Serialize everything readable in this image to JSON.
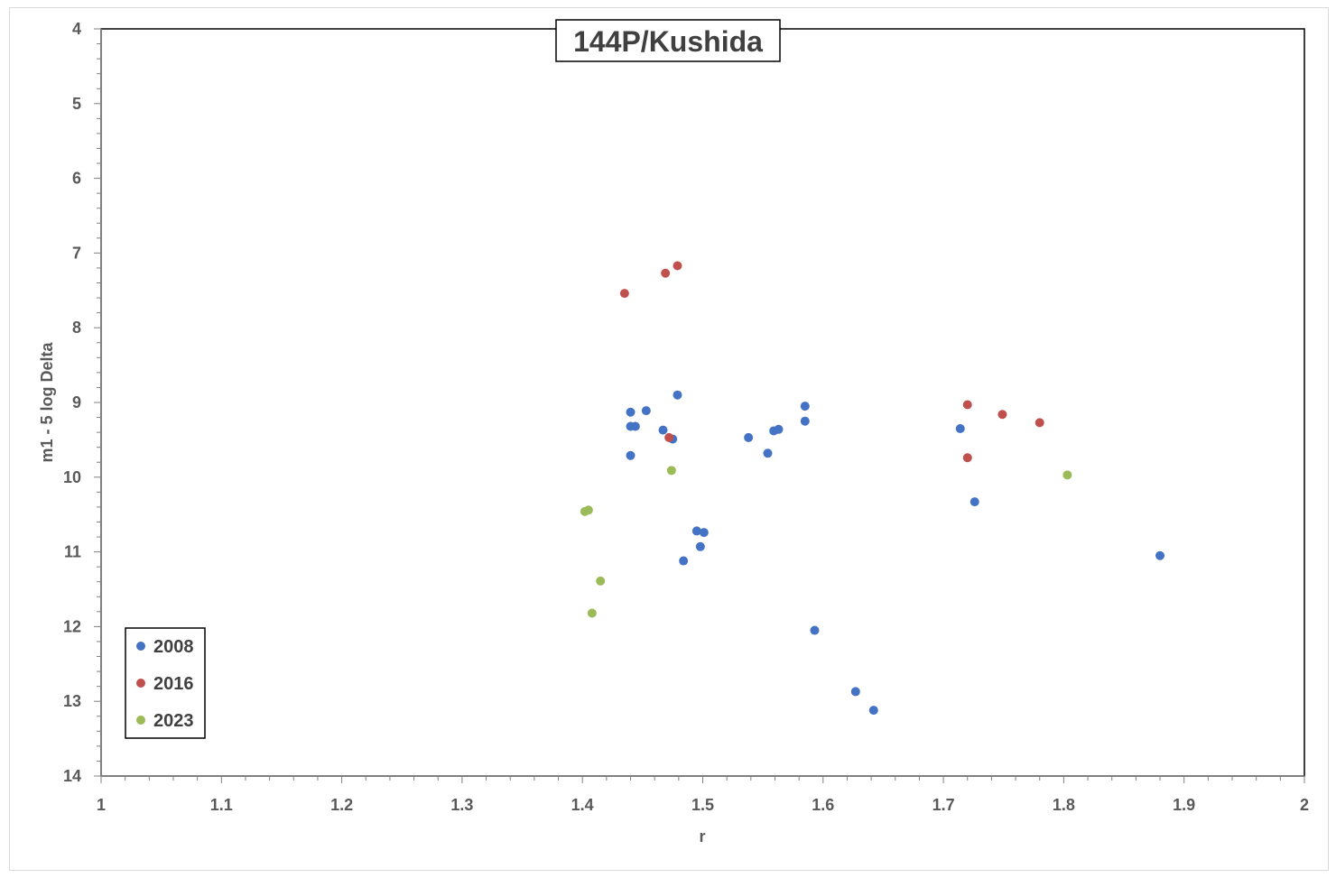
{
  "chart_data": {
    "type": "scatter",
    "title": "144P/Kushida",
    "xlabel": "r",
    "ylabel": "m1 - 5 log Delta",
    "xlim": [
      1,
      2
    ],
    "ylim": [
      4,
      14
    ],
    "y_inverted": true,
    "x_ticks": [
      "1",
      "1.1",
      "1.2",
      "1.3",
      "1.4",
      "1.5",
      "1.6",
      "1.7",
      "1.8",
      "1.9",
      "2"
    ],
    "y_ticks": [
      "4",
      "5",
      "6",
      "7",
      "8",
      "9",
      "10",
      "11",
      "12",
      "13",
      "14"
    ],
    "grid": false,
    "legend_position": "bottom-left",
    "series": [
      {
        "name": "2008",
        "color": "#4472c4",
        "points": [
          [
            1.44,
            9.13
          ],
          [
            1.453,
            9.11
          ],
          [
            1.44,
            9.32
          ],
          [
            1.444,
            9.32
          ],
          [
            1.467,
            9.37
          ],
          [
            1.475,
            9.49
          ],
          [
            1.479,
            8.9
          ],
          [
            1.44,
            9.71
          ],
          [
            1.538,
            9.47
          ],
          [
            1.554,
            9.68
          ],
          [
            1.559,
            9.38
          ],
          [
            1.563,
            9.36
          ],
          [
            1.585,
            9.05
          ],
          [
            1.585,
            9.25
          ],
          [
            1.495,
            10.72
          ],
          [
            1.501,
            10.74
          ],
          [
            1.498,
            10.93
          ],
          [
            1.484,
            11.12
          ],
          [
            1.593,
            12.05
          ],
          [
            1.627,
            12.87
          ],
          [
            1.642,
            13.12
          ],
          [
            1.714,
            9.35
          ],
          [
            1.726,
            10.33
          ],
          [
            1.88,
            11.05
          ]
        ]
      },
      {
        "name": "2016",
        "color": "#c0504d",
        "points": [
          [
            1.435,
            7.54
          ],
          [
            1.469,
            7.27
          ],
          [
            1.479,
            7.17
          ],
          [
            1.472,
            9.47
          ],
          [
            1.72,
            9.03
          ],
          [
            1.72,
            9.74
          ],
          [
            1.749,
            9.16
          ],
          [
            1.78,
            9.27
          ]
        ]
      },
      {
        "name": "2023",
        "color": "#9bbb59",
        "points": [
          [
            1.474,
            9.91
          ],
          [
            1.402,
            10.46
          ],
          [
            1.405,
            10.44
          ],
          [
            1.415,
            11.39
          ],
          [
            1.408,
            11.82
          ],
          [
            1.803,
            9.97
          ]
        ]
      }
    ]
  }
}
